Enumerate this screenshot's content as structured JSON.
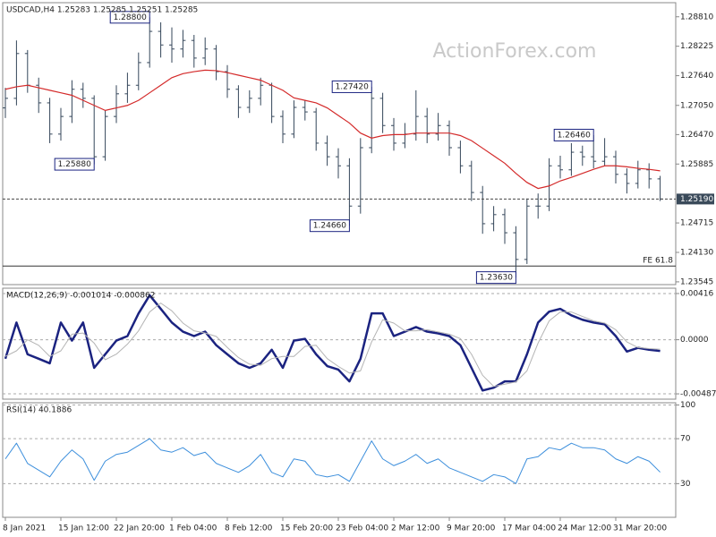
{
  "chart_data": [
    {
      "type": "ohlc",
      "title": "USDCAD,H4  1.25283 1.25285 1.25251 1.25285",
      "watermark": "ActionForex.com",
      "color": "#34465a",
      "categories": [
        "8 Jan 2021",
        null,
        null,
        null,
        null,
        "15 Jan 12:00",
        null,
        null,
        null,
        null,
        "22 Jan 20:00",
        null,
        null,
        null,
        null,
        "1 Feb 04:00",
        null,
        null,
        null,
        null,
        "8 Feb 12:00",
        null,
        null,
        null,
        null,
        "15 Feb 20:00",
        null,
        null,
        null,
        null,
        "23 Feb 04:00",
        null,
        null,
        null,
        null,
        "2 Mar 12:00",
        null,
        null,
        null,
        null,
        "9 Mar 20:00",
        null,
        null,
        null,
        null,
        "17 Mar 04:00",
        null,
        null,
        null,
        null,
        "24 Mar 12:00",
        null,
        null,
        null,
        null,
        "31 Mar 20:00",
        null,
        null,
        null,
        null
      ],
      "open": [
        1.27,
        1.2719,
        1.2808,
        1.2745,
        1.271,
        1.2648,
        1.2683,
        1.2737,
        1.2719,
        1.2603,
        1.2683,
        1.2728,
        1.2745,
        1.279,
        1.2852,
        1.2825,
        1.2817,
        1.2834,
        1.2799,
        1.2817,
        1.2772,
        1.2737,
        1.2701,
        1.2719,
        1.2745,
        1.2683,
        1.2648,
        1.2701,
        1.2692,
        1.263,
        1.2603,
        1.2585,
        1.2505,
        1.2621,
        1.2719,
        1.2665,
        1.263,
        1.2648,
        1.2683,
        1.2648,
        1.2665,
        1.2621,
        1.2585,
        1.2532,
        1.247,
        1.2488,
        1.2452,
        1.2399,
        1.2505,
        1.2505,
        1.2585,
        1.2577,
        1.2612,
        1.2603,
        1.2594,
        1.2603,
        1.2568,
        1.255,
        1.2577,
        1.2559
      ],
      "high": [
        1.274,
        1.2834,
        1.2815,
        1.276,
        1.272,
        1.27,
        1.2755,
        1.275,
        1.2725,
        1.2695,
        1.2745,
        1.277,
        1.281,
        1.288,
        1.287,
        1.286,
        1.2855,
        1.2845,
        1.284,
        1.2825,
        1.2785,
        1.2745,
        1.2735,
        1.276,
        1.275,
        1.2695,
        1.2715,
        1.2715,
        1.27,
        1.2645,
        1.262,
        1.26,
        1.264,
        1.2742,
        1.273,
        1.268,
        1.267,
        1.2735,
        1.27,
        1.269,
        1.2675,
        1.2635,
        1.2595,
        1.2545,
        1.2505,
        1.25,
        1.2465,
        1.252,
        1.253,
        1.26,
        1.2605,
        1.263,
        1.2625,
        1.2646,
        1.264,
        1.2615,
        1.258,
        1.2595,
        1.259,
        1.2565
      ],
      "low": [
        1.268,
        1.2705,
        1.273,
        1.269,
        1.263,
        1.2635,
        1.267,
        1.27,
        1.2588,
        1.2595,
        1.267,
        1.271,
        1.2735,
        1.278,
        1.28,
        1.279,
        1.28,
        1.278,
        1.2785,
        1.2755,
        1.272,
        1.268,
        1.269,
        1.2705,
        1.267,
        1.263,
        1.264,
        1.2675,
        1.2615,
        1.2585,
        1.256,
        1.2466,
        1.249,
        1.261,
        1.265,
        1.2615,
        1.262,
        1.2635,
        1.263,
        1.2635,
        1.2605,
        1.257,
        1.2515,
        1.245,
        1.2455,
        1.243,
        1.2363,
        1.239,
        1.248,
        1.2495,
        1.256,
        1.2565,
        1.2585,
        1.258,
        1.2585,
        1.255,
        1.253,
        1.254,
        1.254,
        1.2515
      ],
      "close": [
        1.2719,
        1.2808,
        1.2745,
        1.271,
        1.2648,
        1.2683,
        1.2737,
        1.2719,
        1.2603,
        1.2683,
        1.2728,
        1.2745,
        1.279,
        1.2852,
        1.2825,
        1.2817,
        1.2834,
        1.2799,
        1.2817,
        1.2772,
        1.2737,
        1.2701,
        1.2719,
        1.2745,
        1.2683,
        1.2648,
        1.2701,
        1.2692,
        1.263,
        1.2603,
        1.2585,
        1.2505,
        1.2621,
        1.2719,
        1.2665,
        1.263,
        1.2648,
        1.2683,
        1.2648,
        1.2665,
        1.2621,
        1.2585,
        1.2532,
        1.247,
        1.2488,
        1.2452,
        1.2399,
        1.2505,
        1.2505,
        1.2585,
        1.2577,
        1.2612,
        1.2603,
        1.2594,
        1.2603,
        1.2568,
        1.255,
        1.2577,
        1.2559,
        1.2519
      ],
      "moving_average": {
        "color": "#d42a2a",
        "values": [
          1.2737,
          1.2742,
          1.2745,
          1.274,
          1.2735,
          1.273,
          1.2725,
          1.2715,
          1.2705,
          1.2695,
          1.27,
          1.2705,
          1.2715,
          1.273,
          1.2745,
          1.276,
          1.2768,
          1.2772,
          1.2775,
          1.2774,
          1.277,
          1.2765,
          1.276,
          1.2755,
          1.2745,
          1.2735,
          1.272,
          1.2715,
          1.271,
          1.27,
          1.2685,
          1.267,
          1.265,
          1.264,
          1.2645,
          1.2647,
          1.2647,
          1.265,
          1.265,
          1.265,
          1.265,
          1.2645,
          1.2635,
          1.262,
          1.2605,
          1.259,
          1.257,
          1.2552,
          1.254,
          1.2545,
          1.2555,
          1.2562,
          1.257,
          1.2578,
          1.2585,
          1.2585,
          1.2583,
          1.258,
          1.2578,
          1.2575
        ]
      },
      "annotations": [
        {
          "value": 1.288,
          "label": "1.28800"
        },
        {
          "value": 1.2588,
          "label": "1.25880"
        },
        {
          "value": 1.2742,
          "label": "1.27420"
        },
        {
          "value": 1.2466,
          "label": "1.24660"
        },
        {
          "value": 1.2363,
          "label": "1.23630"
        },
        {
          "value": 1.2646,
          "label": "1.26460"
        }
      ],
      "current_price": {
        "value": 1.2519,
        "label": "1.25190"
      },
      "level": {
        "value": 1.2386,
        "label": "FE 61.8"
      },
      "ylim": [
        1.2349,
        1.2909
      ],
      "yticks": [
        {
          "value": 1.2881,
          "label": "1.28810"
        },
        {
          "value": 1.28225,
          "label": "1.28225"
        },
        {
          "value": 1.2764,
          "label": "1.27640"
        },
        {
          "value": 1.2705,
          "label": "1.27050"
        },
        {
          "value": 1.2647,
          "label": "1.26470"
        },
        {
          "value": 1.25885,
          "label": "1.25885"
        },
        {
          "value": 1.24715,
          "label": "1.24715"
        },
        {
          "value": 1.2413,
          "label": "1.24130"
        },
        {
          "value": 1.23545,
          "label": "1.23545"
        }
      ]
    },
    {
      "type": "line",
      "title": "MACD(12,26,9) -0.001014 -0.000862",
      "grid": true,
      "lines": [
        {
          "color": "#1b2380",
          "width": 2.5,
          "values": [
            -0.00171,
            0.00155,
            -0.00131,
            -0.00171,
            -0.00212,
            0.00155,
            -8e-05,
            0.00155,
            -0.00253,
            -0.00131,
            -8e-05,
            0.00033,
            0.00237,
            0.004,
            0.00278,
            0.00155,
            0.00073,
            0.00033,
            0.00073,
            -0.00049,
            -0.00131,
            -0.00212,
            -0.00253,
            -0.00212,
            -0.0009,
            -0.00253,
            -8e-05,
            8e-05,
            -0.00131,
            -0.00237,
            -0.00269,
            -0.00375,
            -0.00171,
            0.00237,
            0.00237,
            0.00033,
            0.00073,
            0.00114,
            0.00073,
            0.00057,
            0.00033,
            -0.00049,
            -0.00253,
            -0.00457,
            -0.00432,
            -0.00375,
            -0.00375,
            -0.00131,
            0.00155,
            0.00253,
            0.00278,
            0.0022,
            0.0018,
            0.00155,
            0.00139,
            0.00033,
            -0.00106,
            -0.00073,
            -0.0009,
            -0.001014
          ]
        },
        {
          "color": "#b4b4b4",
          "width": 1,
          "values": [
            -0.0015,
            -0.001,
            0.0,
            -0.0005,
            -0.0015,
            -0.001,
            0.0005,
            0.0006,
            -0.0003,
            -0.0018,
            -0.0013,
            -0.0004,
            0.0008,
            0.0025,
            0.0033,
            0.0026,
            0.0015,
            0.0008,
            0.0006,
            0.0003,
            -0.0007,
            -0.0016,
            -0.0022,
            -0.0023,
            -0.0017,
            -0.0015,
            -0.0015,
            -0.0006,
            -0.0005,
            -0.0017,
            -0.0024,
            -0.003,
            -0.0028,
            -0.0002,
            0.0018,
            0.0015,
            0.0008,
            0.0008,
            0.0009,
            0.0007,
            0.0005,
            0.0001,
            -0.0013,
            -0.0032,
            -0.0042,
            -0.004,
            -0.0038,
            -0.0028,
            -0.0003,
            0.0017,
            0.0025,
            0.0025,
            0.0021,
            0.0017,
            0.0015,
            0.0009,
            -0.0002,
            -0.0007,
            -0.0008,
            -0.000862
          ]
        }
      ],
      "ylim": [
        -0.00535,
        0.00464
      ],
      "yticks": [
        0.00416,
        {
          "value": 0,
          "label": "0.0000"
        },
        -0.004871
      ]
    },
    {
      "type": "line",
      "title": "RSI(14) 40.1886",
      "grid": true,
      "lines": [
        {
          "color": "#3d8fdc",
          "width": 1,
          "values": [
            52,
            66,
            48,
            42,
            36,
            50,
            60,
            52,
            33,
            50,
            56,
            58,
            64,
            70,
            60,
            58,
            62,
            55,
            58,
            48,
            44,
            40,
            46,
            56,
            40,
            36,
            52,
            50,
            38,
            36,
            38,
            32,
            50,
            68,
            52,
            46,
            50,
            56,
            48,
            52,
            44,
            40,
            36,
            32,
            38,
            36,
            30,
            52,
            54,
            62,
            60,
            66,
            62,
            62,
            60,
            52,
            48,
            54,
            50,
            40.1886
          ]
        }
      ],
      "ylim": [
        0,
        102
      ],
      "yticks": [
        100,
        70,
        30
      ]
    }
  ]
}
